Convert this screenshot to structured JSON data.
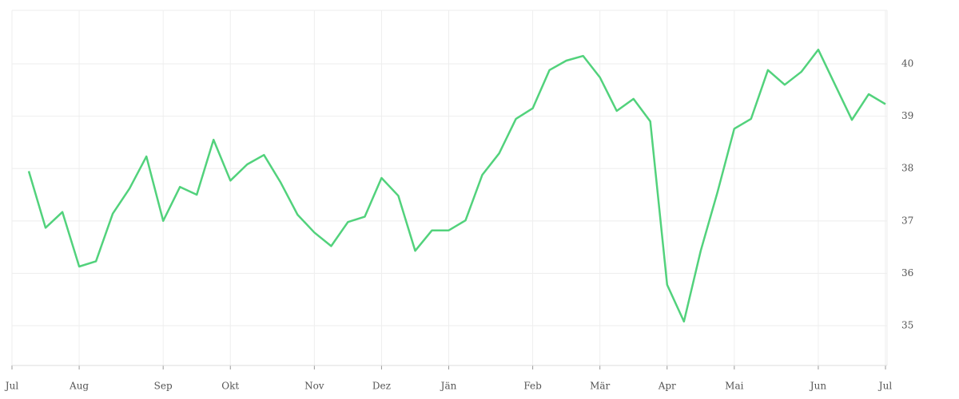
{
  "chart_data": {
    "type": "line",
    "categories": [
      "Jul",
      null,
      null,
      null,
      "Aug",
      null,
      null,
      null,
      null,
      "Sep",
      null,
      null,
      null,
      "Okt",
      null,
      null,
      null,
      null,
      "Nov",
      null,
      null,
      null,
      "Dez",
      null,
      null,
      null,
      "Jän",
      null,
      null,
      null,
      null,
      "Feb",
      null,
      null,
      null,
      "Mär",
      null,
      null,
      null,
      "Apr",
      null,
      null,
      null,
      "Mai",
      null,
      null,
      null,
      null,
      "Jun",
      null,
      null,
      null,
      "Jul"
    ],
    "series": [
      {
        "color": "#52d27c",
        "values": [
          null,
          37.95,
          36.87,
          37.17,
          36.13,
          36.23,
          37.14,
          37.62,
          38.23,
          37.0,
          37.65,
          37.5,
          38.55,
          37.77,
          38.08,
          38.26,
          37.73,
          37.12,
          36.78,
          36.52,
          36.98,
          37.08,
          37.82,
          37.48,
          36.43,
          36.82,
          36.82,
          37.01,
          37.88,
          38.29,
          38.95,
          39.15,
          39.88,
          40.06,
          40.15,
          39.74,
          39.1,
          39.33,
          38.9,
          35.78,
          35.08,
          36.43,
          37.55,
          38.76,
          38.95,
          39.88,
          39.6,
          39.85,
          40.27,
          39.6,
          38.93,
          39.42,
          39.23
        ]
      }
    ],
    "ylim": [
      34.24,
      41.02
    ],
    "yticks": [
      35,
      36,
      37,
      38,
      39,
      40
    ],
    "grid": true
  }
}
